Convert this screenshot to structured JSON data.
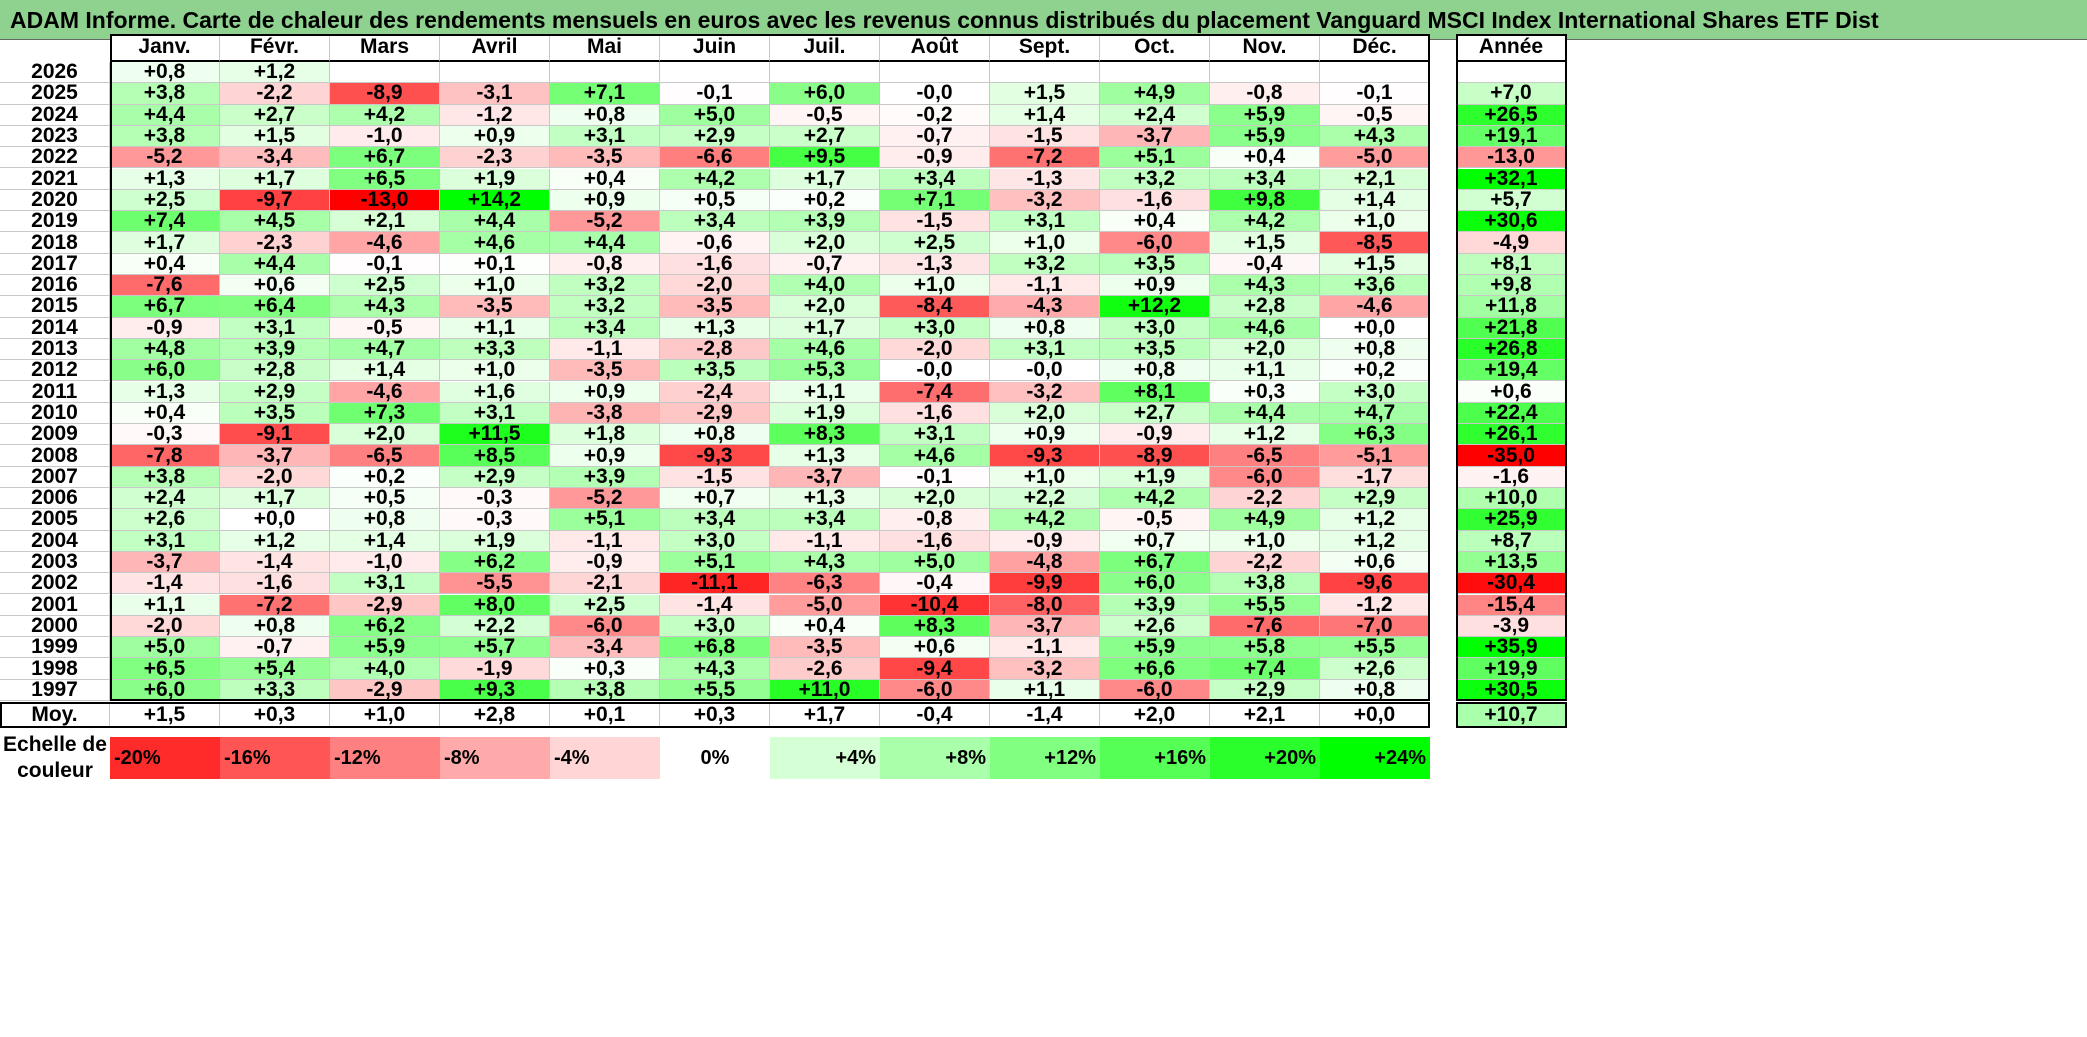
{
  "title": "ADAM Informe. Carte de chaleur des rendements mensuels en euros avec les revenus connus distribués du placement Vanguard MSCI Index International Shares ETF Dist",
  "chart_data": {
    "type": "heatmap",
    "columns": [
      "Janv.",
      "Févr.",
      "Mars",
      "Avril",
      "Mai",
      "Juin",
      "Juil.",
      "Août",
      "Sept.",
      "Oct.",
      "Nov.",
      "Déc."
    ],
    "year_header": "Année",
    "avg_label": "Moy.",
    "rows": [
      {
        "year": "2026",
        "months": [
          "+0,8",
          "+1,2",
          "",
          "",
          "",
          "",
          "",
          "",
          "",
          "",
          "",
          ""
        ],
        "total": ""
      },
      {
        "year": "2025",
        "months": [
          "+3,8",
          "-2,2",
          "-8,9",
          "-3,1",
          "+7,1",
          "-0,1",
          "+6,0",
          "-0,0",
          "+1,5",
          "+4,9",
          "-0,8",
          "-0,1"
        ],
        "total": "+7,0"
      },
      {
        "year": "2024",
        "months": [
          "+4,4",
          "+2,7",
          "+4,2",
          "-1,2",
          "+0,8",
          "+5,0",
          "-0,5",
          "-0,2",
          "+1,4",
          "+2,4",
          "+5,9",
          "-0,5"
        ],
        "total": "+26,5"
      },
      {
        "year": "2023",
        "months": [
          "+3,8",
          "+1,5",
          "-1,0",
          "+0,9",
          "+3,1",
          "+2,9",
          "+2,7",
          "-0,7",
          "-1,5",
          "-3,7",
          "+5,9",
          "+4,3"
        ],
        "total": "+19,1"
      },
      {
        "year": "2022",
        "months": [
          "-5,2",
          "-3,4",
          "+6,7",
          "-2,3",
          "-3,5",
          "-6,6",
          "+9,5",
          "-0,9",
          "-7,2",
          "+5,1",
          "+0,4",
          "-5,0"
        ],
        "total": "-13,0"
      },
      {
        "year": "2021",
        "months": [
          "+1,3",
          "+1,7",
          "+6,5",
          "+1,9",
          "+0,4",
          "+4,2",
          "+1,7",
          "+3,4",
          "-1,3",
          "+3,2",
          "+3,4",
          "+2,1"
        ],
        "total": "+32,1"
      },
      {
        "year": "2020",
        "months": [
          "+2,5",
          "-9,7",
          "-13,0",
          "+14,2",
          "+0,9",
          "+0,5",
          "+0,2",
          "+7,1",
          "-3,2",
          "-1,6",
          "+9,8",
          "+1,4"
        ],
        "total": "+5,7"
      },
      {
        "year": "2019",
        "months": [
          "+7,4",
          "+4,5",
          "+2,1",
          "+4,4",
          "-5,2",
          "+3,4",
          "+3,9",
          "-1,5",
          "+3,1",
          "+0,4",
          "+4,2",
          "+1,0"
        ],
        "total": "+30,6"
      },
      {
        "year": "2018",
        "months": [
          "+1,7",
          "-2,3",
          "-4,6",
          "+4,6",
          "+4,4",
          "-0,6",
          "+2,0",
          "+2,5",
          "+1,0",
          "-6,0",
          "+1,5",
          "-8,5"
        ],
        "total": "-4,9"
      },
      {
        "year": "2017",
        "months": [
          "+0,4",
          "+4,4",
          "-0,1",
          "+0,1",
          "-0,8",
          "-1,6",
          "-0,7",
          "-1,3",
          "+3,2",
          "+3,5",
          "-0,4",
          "+1,5"
        ],
        "total": "+8,1"
      },
      {
        "year": "2016",
        "months": [
          "-7,6",
          "+0,6",
          "+2,5",
          "+1,0",
          "+3,2",
          "-2,0",
          "+4,0",
          "+1,0",
          "-1,1",
          "+0,9",
          "+4,3",
          "+3,6"
        ],
        "total": "+9,8"
      },
      {
        "year": "2015",
        "months": [
          "+6,7",
          "+6,4",
          "+4,3",
          "-3,5",
          "+3,2",
          "-3,5",
          "+2,0",
          "-8,4",
          "-4,3",
          "+12,2",
          "+2,8",
          "-4,6"
        ],
        "total": "+11,8"
      },
      {
        "year": "2014",
        "months": [
          "-0,9",
          "+3,1",
          "-0,5",
          "+1,1",
          "+3,4",
          "+1,3",
          "+1,7",
          "+3,0",
          "+0,8",
          "+3,0",
          "+4,6",
          "+0,0"
        ],
        "total": "+21,8"
      },
      {
        "year": "2013",
        "months": [
          "+4,8",
          "+3,9",
          "+4,7",
          "+3,3",
          "-1,1",
          "-2,8",
          "+4,6",
          "-2,0",
          "+3,1",
          "+3,5",
          "+2,0",
          "+0,8"
        ],
        "total": "+26,8"
      },
      {
        "year": "2012",
        "months": [
          "+6,0",
          "+2,8",
          "+1,4",
          "+1,0",
          "-3,5",
          "+3,5",
          "+5,3",
          "-0,0",
          "-0,0",
          "+0,8",
          "+1,1",
          "+0,2"
        ],
        "total": "+19,4"
      },
      {
        "year": "2011",
        "months": [
          "+1,3",
          "+2,9",
          "-4,6",
          "+1,6",
          "+0,9",
          "-2,4",
          "+1,1",
          "-7,4",
          "-3,2",
          "+8,1",
          "+0,3",
          "+3,0"
        ],
        "total": "+0,6"
      },
      {
        "year": "2010",
        "months": [
          "+0,4",
          "+3,5",
          "+7,3",
          "+3,1",
          "-3,8",
          "-2,9",
          "+1,9",
          "-1,6",
          "+2,0",
          "+2,7",
          "+4,4",
          "+4,7"
        ],
        "total": "+22,4"
      },
      {
        "year": "2009",
        "months": [
          "-0,3",
          "-9,1",
          "+2,0",
          "+11,5",
          "+1,8",
          "+0,8",
          "+8,3",
          "+3,1",
          "+0,9",
          "-0,9",
          "+1,2",
          "+6,3"
        ],
        "total": "+26,1"
      },
      {
        "year": "2008",
        "months": [
          "-7,8",
          "-3,7",
          "-6,5",
          "+8,5",
          "+0,9",
          "-9,3",
          "+1,3",
          "+4,6",
          "-9,3",
          "-8,9",
          "-6,5",
          "-5,1"
        ],
        "total": "-35,0"
      },
      {
        "year": "2007",
        "months": [
          "+3,8",
          "-2,0",
          "+0,2",
          "+2,9",
          "+3,9",
          "-1,5",
          "-3,7",
          "-0,1",
          "+1,0",
          "+1,9",
          "-6,0",
          "-1,7"
        ],
        "total": "-1,6"
      },
      {
        "year": "2006",
        "months": [
          "+2,4",
          "+1,7",
          "+0,5",
          "-0,3",
          "-5,2",
          "+0,7",
          "+1,3",
          "+2,0",
          "+2,2",
          "+4,2",
          "-2,2",
          "+2,9"
        ],
        "total": "+10,0"
      },
      {
        "year": "2005",
        "months": [
          "+2,6",
          "+0,0",
          "+0,8",
          "-0,3",
          "+5,1",
          "+3,4",
          "+3,4",
          "-0,8",
          "+4,2",
          "-0,5",
          "+4,9",
          "+1,2"
        ],
        "total": "+25,9"
      },
      {
        "year": "2004",
        "months": [
          "+3,1",
          "+1,2",
          "+1,4",
          "+1,9",
          "-1,1",
          "+3,0",
          "-1,1",
          "-1,6",
          "-0,9",
          "+0,7",
          "+1,0",
          "+1,2"
        ],
        "total": "+8,7"
      },
      {
        "year": "2003",
        "months": [
          "-3,7",
          "-1,4",
          "-1,0",
          "+6,2",
          "-0,9",
          "+5,1",
          "+4,3",
          "+5,0",
          "-4,8",
          "+6,7",
          "-2,2",
          "+0,6"
        ],
        "total": "+13,5"
      },
      {
        "year": "2002",
        "months": [
          "-1,4",
          "-1,6",
          "+3,1",
          "-5,5",
          "-2,1",
          "-11,1",
          "-6,3",
          "-0,4",
          "-9,9",
          "+6,0",
          "+3,8",
          "-9,6"
        ],
        "total": "-30,4"
      },
      {
        "year": "2001",
        "months": [
          "+1,1",
          "-7,2",
          "-2,9",
          "+8,0",
          "+2,5",
          "-1,4",
          "-5,0",
          "-10,4",
          "-8,0",
          "+3,9",
          "+5,5",
          "-1,2"
        ],
        "total": "-15,4"
      },
      {
        "year": "2000",
        "months": [
          "-2,0",
          "+0,8",
          "+6,2",
          "+2,2",
          "-6,0",
          "+3,0",
          "+0,4",
          "+8,3",
          "-3,7",
          "+2,6",
          "-7,6",
          "-7,0"
        ],
        "total": "-3,9"
      },
      {
        "year": "1999",
        "months": [
          "+5,0",
          "-0,7",
          "+5,9",
          "+5,7",
          "-3,4",
          "+6,8",
          "-3,5",
          "+0,6",
          "-1,1",
          "+5,9",
          "+5,8",
          "+5,5"
        ],
        "total": "+35,9"
      },
      {
        "year": "1998",
        "months": [
          "+6,5",
          "+5,4",
          "+4,0",
          "-1,9",
          "+0,3",
          "+4,3",
          "-2,6",
          "-9,4",
          "-3,2",
          "+6,6",
          "+7,4",
          "+2,6"
        ],
        "total": "+19,9"
      },
      {
        "year": "1997",
        "months": [
          "+6,0",
          "+3,3",
          "-2,9",
          "+9,3",
          "+3,8",
          "+5,5",
          "+11,0",
          "-6,0",
          "+1,1",
          "-6,0",
          "+2,9",
          "+0,8"
        ],
        "total": "+30,5"
      }
    ],
    "averages": [
      "+1,5",
      "+0,3",
      "+1,0",
      "+2,8",
      "+0,1",
      "+0,3",
      "+1,7",
      "-0,4",
      "-1,4",
      "+2,0",
      "+2,1",
      "+0,0"
    ],
    "average_total": "+10,7",
    "scale_label_1": "Echelle de",
    "scale_label_2": "couleur",
    "scale": [
      {
        "label": "-20%",
        "value": -20
      },
      {
        "label": "-16%",
        "value": -16
      },
      {
        "label": "-12%",
        "value": -12
      },
      {
        "label": "-8%",
        "value": -8
      },
      {
        "label": "-4%",
        "value": -4
      },
      {
        "label": "0%",
        "value": 0
      },
      {
        "label": "+4%",
        "value": 4
      },
      {
        "label": "+8%",
        "value": 8
      },
      {
        "label": "+12%",
        "value": 12
      },
      {
        "label": "+16%",
        "value": 16
      },
      {
        "label": "+20%",
        "value": 20
      },
      {
        "label": "+24%",
        "value": 24
      }
    ],
    "colors": {
      "positive_max": "#00ff00",
      "negative_max": "#ff0000",
      "neutral": "#ffffff",
      "title_background": "#8fd18f"
    }
  }
}
